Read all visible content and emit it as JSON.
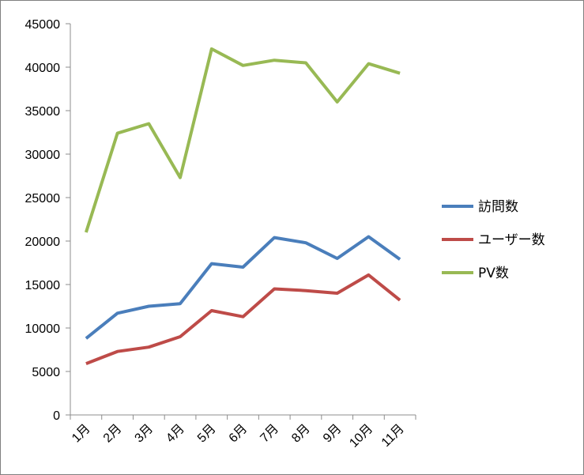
{
  "chart_data": {
    "type": "line",
    "title": "",
    "xlabel": "",
    "ylabel": "",
    "categories": [
      "1月",
      "2月",
      "3月",
      "4月",
      "5月",
      "6月",
      "7月",
      "8月",
      "9月",
      "10月",
      "11月"
    ],
    "ylim": [
      0,
      45000
    ],
    "yticks": [
      0,
      5000,
      10000,
      15000,
      20000,
      25000,
      30000,
      35000,
      40000,
      45000
    ],
    "grid": false,
    "legend_position": "right",
    "series": [
      {
        "name": "訪問数",
        "color": "#4a7ebb",
        "values": [
          8800,
          11700,
          12500,
          12800,
          17400,
          17000,
          20400,
          19800,
          18000,
          20500,
          17900
        ]
      },
      {
        "name": "ユーザー数",
        "color": "#be4b48",
        "values": [
          5900,
          7300,
          7800,
          9000,
          12000,
          11300,
          14500,
          14300,
          14000,
          16100,
          13200
        ]
      },
      {
        "name": "PV数",
        "color": "#98b954",
        "values": [
          21000,
          32400,
          33500,
          27300,
          42100,
          40200,
          40800,
          40500,
          36000,
          40400,
          39300
        ]
      }
    ]
  }
}
